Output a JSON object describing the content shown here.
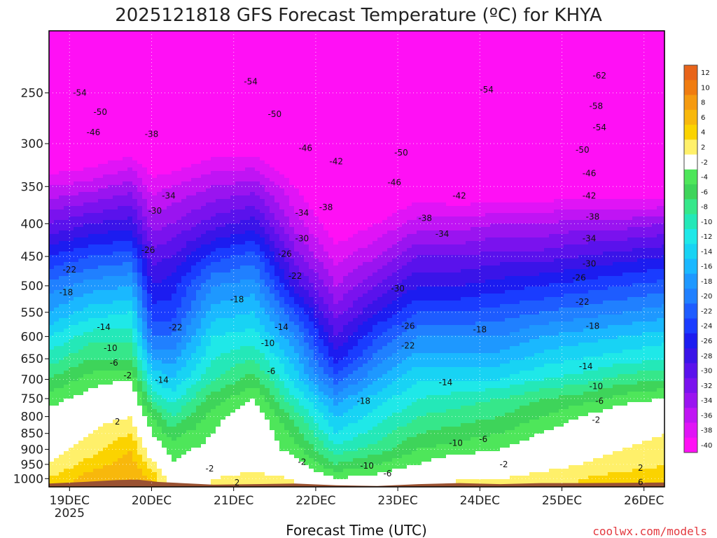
{
  "chart_data": {
    "type": "contour",
    "title": "2025121818 GFS Forecast Temperature (ºC) for KHYA",
    "xlabel": "Forecast Time (UTC)",
    "ylabel": "",
    "credit": "coolwx.com/models",
    "y_scale": "log",
    "y_inverted": true,
    "ylim": [
      1030,
      200
    ],
    "y_ticks": [
      250,
      300,
      350,
      400,
      450,
      500,
      550,
      600,
      650,
      700,
      750,
      800,
      850,
      900,
      950,
      1000
    ],
    "x_ticks": [
      {
        "label": "19DEC",
        "sub": "2025",
        "hour": 6
      },
      {
        "label": "20DEC",
        "sub": "",
        "hour": 30
      },
      {
        "label": "21DEC",
        "sub": "",
        "hour": 54
      },
      {
        "label": "22DEC",
        "sub": "",
        "hour": 78
      },
      {
        "label": "23DEC",
        "sub": "",
        "hour": 102
      },
      {
        "label": "24DEC",
        "sub": "",
        "hour": 126
      },
      {
        "label": "25DEC",
        "sub": "",
        "hour": 150
      },
      {
        "label": "26DEC",
        "sub": "",
        "hour": 174
      }
    ],
    "xlim": [
      0,
      180
    ],
    "grid": true,
    "colorbar": {
      "labels": [
        "12",
        "10",
        "8",
        "6",
        "4",
        "2",
        "-2",
        "-4",
        "-6",
        "-8",
        "-10",
        "-12",
        "-14",
        "-16",
        "-18",
        "-20",
        "-22",
        "-24",
        "-26",
        "-28",
        "-30",
        "-32",
        "-34",
        "-36",
        "-38",
        "-40"
      ],
      "colors": [
        "#e8641a",
        "#f07c10",
        "#f59a10",
        "#f8b80c",
        "#fbd300",
        "#fff06a",
        "#ffffff",
        "#4ee65a",
        "#3ed45a",
        "#36e78a",
        "#24e8b8",
        "#1fe8e8",
        "#18d3f4",
        "#1ab8ff",
        "#1e98ff",
        "#2080ff",
        "#1e5cff",
        "#1a3cff",
        "#1c1cf0",
        "#3a14e8",
        "#5a12ec",
        "#7a12ee",
        "#9a14f0",
        "#c014f4",
        "#e014f6",
        "#ff10f5"
      ]
    },
    "profiles": [
      {
        "hour": 0,
        "t": {
          "1000": 4,
          "950": 2,
          "900": 1,
          "850": 0,
          "800": -1,
          "750": -3,
          "700": -6,
          "650": -9,
          "600": -12,
          "550": -16,
          "500": -19,
          "450": -24,
          "400": -30,
          "350": -36,
          "300": -43,
          "250": -52
        }
      },
      {
        "hour": 12,
        "t": {
          "1000": 7,
          "950": 5,
          "900": 3,
          "850": 2,
          "800": 1,
          "750": -1,
          "700": -3,
          "650": -6,
          "600": -9,
          "550": -13,
          "500": -17,
          "450": -22,
          "400": -28,
          "350": -35,
          "300": -42,
          "250": -51
        }
      },
      {
        "hour": 24,
        "t": {
          "1000": 8,
          "950": 7,
          "900": 6,
          "850": 4,
          "800": 2,
          "750": 1,
          "700": -2,
          "650": -6,
          "600": -9,
          "550": -12,
          "500": -16,
          "450": -21,
          "400": -27,
          "350": -33,
          "300": -40,
          "250": -49
        }
      },
      {
        "hour": 30,
        "t": {
          "1000": 6,
          "950": 3,
          "900": 0,
          "850": -2,
          "800": -4,
          "750": -8,
          "700": -12,
          "650": -16,
          "600": -20,
          "550": -23,
          "500": -26,
          "450": -29,
          "400": -33,
          "350": -37,
          "300": -42,
          "250": -50
        }
      },
      {
        "hour": 36,
        "t": {
          "1000": 0,
          "950": -2,
          "900": -3,
          "850": -5,
          "800": -8,
          "750": -11,
          "700": -14,
          "650": -17,
          "600": -20,
          "550": -23,
          "500": -25,
          "450": -28,
          "400": -32,
          "350": -36,
          "300": -42,
          "250": -50
        }
      },
      {
        "hour": 48,
        "t": {
          "1000": 2,
          "950": 0,
          "900": -1,
          "850": -2,
          "800": -3,
          "750": -5,
          "700": -8,
          "650": -10,
          "600": -12,
          "550": -15,
          "500": -18,
          "450": -23,
          "400": -29,
          "350": -34,
          "300": -40,
          "250": -49
        }
      },
      {
        "hour": 60,
        "t": {
          "1000": 3,
          "950": 1,
          "900": 0,
          "850": 1,
          "800": 0,
          "750": -2,
          "700": -5,
          "650": -8,
          "600": -11,
          "550": -14,
          "500": -17,
          "450": -21,
          "400": -27,
          "350": -33,
          "300": -40,
          "250": -49
        }
      },
      {
        "hour": 72,
        "t": {
          "1000": 2,
          "950": -1,
          "900": -3,
          "850": -5,
          "800": -7,
          "750": -10,
          "700": -13,
          "650": -15,
          "600": -18,
          "550": -22,
          "500": -27,
          "450": -31,
          "400": -35,
          "350": -38,
          "300": -44,
          "250": -52
        }
      },
      {
        "hour": 84,
        "t": {
          "1000": -2,
          "950": -6,
          "900": -9,
          "850": -12,
          "800": -14,
          "750": -17,
          "700": -21,
          "650": -25,
          "600": -28,
          "550": -31,
          "500": -34,
          "450": -37,
          "400": -40,
          "350": -42,
          "300": -45,
          "250": -52
        }
      },
      {
        "hour": 96,
        "t": {
          "1000": -1,
          "950": -4,
          "900": -7,
          "850": -9,
          "800": -11,
          "750": -13,
          "700": -16,
          "650": -19,
          "600": -22,
          "550": -26,
          "500": -30,
          "450": -34,
          "400": -38,
          "350": -42,
          "300": -47,
          "250": -54
        }
      },
      {
        "hour": 108,
        "t": {
          "1000": 1,
          "950": -2,
          "900": -4,
          "850": -6,
          "800": -8,
          "750": -10,
          "700": -12,
          "650": -15,
          "600": -18,
          "550": -22,
          "500": -26,
          "450": -30,
          "400": -35,
          "350": -40,
          "300": -47,
          "250": -55
        }
      },
      {
        "hour": 120,
        "t": {
          "1000": 2,
          "950": 0,
          "900": -3,
          "850": -5,
          "800": -7,
          "750": -9,
          "700": -12,
          "650": -15,
          "600": -18,
          "550": -22,
          "500": -26,
          "450": -30,
          "400": -35,
          "350": -41,
          "300": -48,
          "250": -56
        }
      },
      {
        "hour": 132,
        "t": {
          "1000": 2,
          "950": 0,
          "900": -2,
          "850": -4,
          "800": -6,
          "750": -8,
          "700": -12,
          "650": -15,
          "600": -18,
          "550": -21,
          "500": -25,
          "450": -29,
          "400": -34,
          "350": -41,
          "300": -49,
          "250": -57
        }
      },
      {
        "hour": 144,
        "t": {
          "1000": 3,
          "950": 1,
          "900": 0,
          "850": -2,
          "800": -4,
          "750": -6,
          "700": -10,
          "650": -13,
          "600": -16,
          "550": -20,
          "500": -24,
          "450": -29,
          "400": -34,
          "350": -41,
          "300": -49,
          "250": -58
        }
      },
      {
        "hour": 156,
        "t": {
          "1000": 4,
          "950": 2,
          "900": 1,
          "850": 0,
          "800": -2,
          "750": -5,
          "700": -9,
          "650": -12,
          "600": -15,
          "550": -19,
          "500": -23,
          "450": -28,
          "400": -33,
          "350": -40,
          "300": -49,
          "250": -59
        }
      },
      {
        "hour": 168,
        "t": {
          "1000": 5,
          "950": 3,
          "900": 2,
          "850": 1,
          "800": 0,
          "750": -3,
          "700": -7,
          "650": -11,
          "600": -14,
          "550": -18,
          "500": -22,
          "450": -27,
          "400": -33,
          "350": -41,
          "300": -50,
          "250": -61
        }
      },
      {
        "hour": 180,
        "t": {
          "1000": 5,
          "950": 4,
          "900": 3,
          "850": 2,
          "800": 1,
          "750": -2,
          "700": -6,
          "650": -10,
          "600": -13,
          "550": -17,
          "500": -21,
          "450": -26,
          "400": -32,
          "350": -41,
          "300": -50,
          "250": -62
        }
      }
    ],
    "contour_labels": [
      {
        "text": "-54",
        "hour": 9,
        "p": 250
      },
      {
        "text": "-50",
        "hour": 15,
        "p": 268
      },
      {
        "text": "-46",
        "hour": 13,
        "p": 288
      },
      {
        "text": "-38",
        "hour": 30,
        "p": 290
      },
      {
        "text": "-34",
        "hour": 35,
        "p": 362
      },
      {
        "text": "-30",
        "hour": 31,
        "p": 382
      },
      {
        "text": "-26",
        "hour": 29,
        "p": 440
      },
      {
        "text": "-22",
        "hour": 6,
        "p": 472
      },
      {
        "text": "-18",
        "hour": 5,
        "p": 512
      },
      {
        "text": "-14",
        "hour": 16,
        "p": 580
      },
      {
        "text": "-10",
        "hour": 18,
        "p": 626
      },
      {
        "text": "-6",
        "hour": 19,
        "p": 660
      },
      {
        "text": "-2",
        "hour": 23,
        "p": 690
      },
      {
        "text": "-14",
        "hour": 33,
        "p": 702
      },
      {
        "text": "-22",
        "hour": 37,
        "p": 581
      },
      {
        "text": "-18",
        "hour": 55,
        "p": 525
      },
      {
        "text": "-22",
        "hour": 72,
        "p": 483
      },
      {
        "text": "-26",
        "hour": 69,
        "p": 446
      },
      {
        "text": "-30",
        "hour": 74,
        "p": 422
      },
      {
        "text": "-34",
        "hour": 74,
        "p": 385
      },
      {
        "text": "-38",
        "hour": 81,
        "p": 377
      },
      {
        "text": "-42",
        "hour": 84,
        "p": 320
      },
      {
        "text": "-46",
        "hour": 75,
        "p": 305
      },
      {
        "text": "-50",
        "hour": 66,
        "p": 270
      },
      {
        "text": "-54",
        "hour": 59,
        "p": 240
      },
      {
        "text": "-14",
        "hour": 68,
        "p": 580
      },
      {
        "text": "-10",
        "hour": 64,
        "p": 615
      },
      {
        "text": "-6",
        "hour": 65,
        "p": 680
      },
      {
        "text": "-2",
        "hour": 47,
        "p": 965
      },
      {
        "text": "-2",
        "hour": 74,
        "p": 942
      },
      {
        "text": "2",
        "hour": 55,
        "p": 1015
      },
      {
        "text": "2",
        "hour": 20,
        "p": 815
      },
      {
        "text": "-18",
        "hour": 92,
        "p": 757
      },
      {
        "text": "-22",
        "hour": 105,
        "p": 620
      },
      {
        "text": "-26",
        "hour": 105,
        "p": 578
      },
      {
        "text": "-30",
        "hour": 102,
        "p": 505
      },
      {
        "text": "-34",
        "hour": 115,
        "p": 415
      },
      {
        "text": "-38",
        "hour": 110,
        "p": 392
      },
      {
        "text": "-42",
        "hour": 120,
        "p": 362
      },
      {
        "text": "-46",
        "hour": 101,
        "p": 345
      },
      {
        "text": "-50",
        "hour": 103,
        "p": 310
      },
      {
        "text": "-14",
        "hour": 116,
        "p": 708
      },
      {
        "text": "-10",
        "hour": 119,
        "p": 880
      },
      {
        "text": "-6",
        "hour": 127,
        "p": 868
      },
      {
        "text": "-10",
        "hour": 93,
        "p": 955
      },
      {
        "text": "-6",
        "hour": 99,
        "p": 982
      },
      {
        "text": "-2",
        "hour": 133,
        "p": 950
      },
      {
        "text": "-18",
        "hour": 126,
        "p": 585
      },
      {
        "text": "-54",
        "hour": 128,
        "p": 247
      },
      {
        "text": "-62",
        "hour": 161,
        "p": 235
      },
      {
        "text": "-58",
        "hour": 160,
        "p": 262
      },
      {
        "text": "-54",
        "hour": 161,
        "p": 283
      },
      {
        "text": "-50",
        "hour": 156,
        "p": 307
      },
      {
        "text": "-46",
        "hour": 158,
        "p": 334
      },
      {
        "text": "-42",
        "hour": 158,
        "p": 362
      },
      {
        "text": "-38",
        "hour": 159,
        "p": 390
      },
      {
        "text": "-34",
        "hour": 158,
        "p": 422
      },
      {
        "text": "-30",
        "hour": 158,
        "p": 462
      },
      {
        "text": "-26",
        "hour": 155,
        "p": 486
      },
      {
        "text": "-22",
        "hour": 156,
        "p": 530
      },
      {
        "text": "-18",
        "hour": 159,
        "p": 578
      },
      {
        "text": "-14",
        "hour": 157,
        "p": 668
      },
      {
        "text": "-10",
        "hour": 160,
        "p": 718
      },
      {
        "text": "-6",
        "hour": 161,
        "p": 757
      },
      {
        "text": "-2",
        "hour": 160,
        "p": 810
      },
      {
        "text": "2",
        "hour": 173,
        "p": 962
      },
      {
        "text": "6",
        "hour": 173,
        "p": 1013
      }
    ]
  }
}
